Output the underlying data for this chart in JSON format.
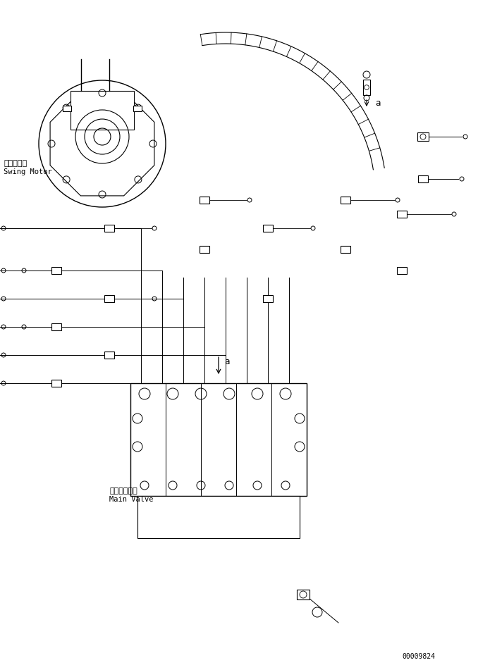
{
  "bg_color": "#ffffff",
  "line_color": "#000000",
  "text_color": "#000000",
  "title": "",
  "part_number": "00009824",
  "label_swing_motor_jp": "旋回モータ",
  "label_swing_motor_en": "Swing Motor",
  "label_main_valve_jp": "メインバルブ",
  "label_main_valve_en": "Main Valve",
  "label_a": "a"
}
